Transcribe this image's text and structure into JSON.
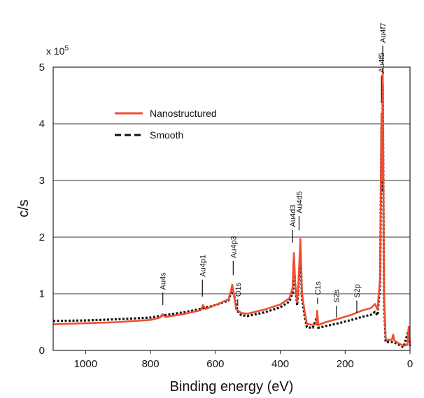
{
  "chart_data": {
    "type": "line",
    "title": "",
    "multiplier_label": "x 10",
    "multiplier_exp": "5",
    "xlabel": "Binding energy (eV)",
    "ylabel": "c/s",
    "x_reversed": true,
    "xlim": [
      1100,
      0
    ],
    "ylim": [
      0,
      5
    ],
    "x_ticks": [
      1000,
      800,
      600,
      400,
      200,
      0
    ],
    "y_ticks": [
      0,
      1,
      2,
      3,
      4,
      5
    ],
    "grid": "horizontal",
    "legend_position": "top-left",
    "series": [
      {
        "name": "Nanostructured",
        "color": "#f04e30",
        "style": "solid",
        "points": [
          [
            1100,
            0.46
          ],
          [
            1000,
            0.48
          ],
          [
            900,
            0.5
          ],
          [
            800,
            0.54
          ],
          [
            770,
            0.58
          ],
          [
            762,
            0.64
          ],
          [
            755,
            0.59
          ],
          [
            700,
            0.64
          ],
          [
            645,
            0.71
          ],
          [
            638,
            0.8
          ],
          [
            630,
            0.73
          ],
          [
            600,
            0.8
          ],
          [
            560,
            0.9
          ],
          [
            552,
            1.05
          ],
          [
            548,
            1.16
          ],
          [
            543,
            1.0
          ],
          [
            536,
            0.73
          ],
          [
            520,
            0.66
          ],
          [
            500,
            0.65
          ],
          [
            450,
            0.72
          ],
          [
            400,
            0.81
          ],
          [
            372,
            0.92
          ],
          [
            362,
            1.1
          ],
          [
            358,
            1.72
          ],
          [
            354,
            1.2
          ],
          [
            348,
            0.85
          ],
          [
            344,
            1.15
          ],
          [
            338,
            1.97
          ],
          [
            333,
            1.0
          ],
          [
            325,
            0.7
          ],
          [
            318,
            0.47
          ],
          [
            300,
            0.45
          ],
          [
            289,
            0.46
          ],
          [
            286,
            0.7
          ],
          [
            283,
            0.45
          ],
          [
            260,
            0.5
          ],
          [
            220,
            0.56
          ],
          [
            180,
            0.63
          ],
          [
            150,
            0.7
          ],
          [
            120,
            0.75
          ],
          [
            108,
            0.82
          ],
          [
            100,
            0.72
          ],
          [
            92,
            1.3
          ],
          [
            88,
            4.18
          ],
          [
            86,
            3.0
          ],
          [
            84,
            4.96
          ],
          [
            80,
            1.0
          ],
          [
            75,
            0.2
          ],
          [
            65,
            0.18
          ],
          [
            55,
            0.2
          ],
          [
            52,
            0.28
          ],
          [
            48,
            0.17
          ],
          [
            20,
            0.08
          ],
          [
            8,
            0.1
          ],
          [
            4,
            0.42
          ],
          [
            2,
            0.25
          ],
          [
            0,
            0.1
          ]
        ]
      },
      {
        "name": "Smooth",
        "color": "#111111",
        "style": "dashed",
        "points": [
          [
            1100,
            0.52
          ],
          [
            1000,
            0.53
          ],
          [
            900,
            0.55
          ],
          [
            800,
            0.58
          ],
          [
            760,
            0.62
          ],
          [
            700,
            0.67
          ],
          [
            640,
            0.74
          ],
          [
            600,
            0.8
          ],
          [
            560,
            0.88
          ],
          [
            548,
            1.08
          ],
          [
            540,
            0.92
          ],
          [
            532,
            0.7
          ],
          [
            520,
            0.62
          ],
          [
            500,
            0.61
          ],
          [
            450,
            0.67
          ],
          [
            400,
            0.76
          ],
          [
            372,
            0.86
          ],
          [
            362,
            1.02
          ],
          [
            358,
            1.6
          ],
          [
            354,
            1.12
          ],
          [
            348,
            0.8
          ],
          [
            344,
            1.08
          ],
          [
            338,
            1.82
          ],
          [
            333,
            0.92
          ],
          [
            325,
            0.62
          ],
          [
            318,
            0.41
          ],
          [
            300,
            0.4
          ],
          [
            286,
            0.6
          ],
          [
            283,
            0.4
          ],
          [
            260,
            0.43
          ],
          [
            220,
            0.48
          ],
          [
            180,
            0.54
          ],
          [
            150,
            0.59
          ],
          [
            120,
            0.63
          ],
          [
            108,
            0.68
          ],
          [
            100,
            0.62
          ],
          [
            92,
            1.2
          ],
          [
            88,
            3.95
          ],
          [
            86,
            2.8
          ],
          [
            84,
            4.7
          ],
          [
            80,
            0.85
          ],
          [
            75,
            0.15
          ],
          [
            55,
            0.15
          ],
          [
            48,
            0.14
          ],
          [
            20,
            0.06
          ],
          [
            4,
            0.36
          ],
          [
            0,
            0.08
          ]
        ]
      }
    ],
    "annotations": [
      {
        "label": "Au4s",
        "x": 762,
        "y1": 0.8,
        "y2": 1.02
      },
      {
        "label": "Au4p1",
        "x": 640,
        "y1": 0.95,
        "y2": 1.25
      },
      {
        "label": "Au4p3",
        "x": 545,
        "y1": 1.33,
        "y2": 1.58
      },
      {
        "label": "O1s",
        "x": 531,
        "y1": 0.79,
        "y2": 0.9
      },
      {
        "label": "Au4d3",
        "x": 362,
        "y1": 1.9,
        "y2": 2.13
      },
      {
        "label": "Au4d5",
        "x": 342,
        "y1": 2.12,
        "y2": 2.37
      },
      {
        "label": "C1s",
        "x": 285,
        "y1": 0.82,
        "y2": 0.93
      },
      {
        "label": "S2s",
        "x": 227,
        "y1": 0.58,
        "y2": 0.79
      },
      {
        "label": "S2p",
        "x": 164,
        "y1": 0.66,
        "y2": 0.88
      },
      {
        "label": "Au4f5",
        "x": 88,
        "y1": 4.37,
        "y2": 4.85
      },
      {
        "label": "Au4f7",
        "x": 84,
        "y1": 5.05,
        "y2": 5.38
      }
    ]
  }
}
